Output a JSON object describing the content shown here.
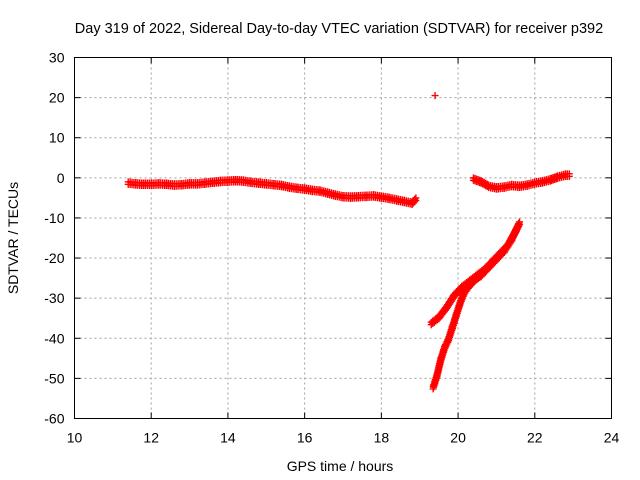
{
  "chart_data": {
    "type": "scatter",
    "title": "Day 319 of 2022, Sidereal Day-to-day VTEC variation (SDTVAR) for receiver p392",
    "xlabel": "GPS time / hours",
    "ylabel": "SDTVAR / TECUs",
    "xlim": [
      10,
      24
    ],
    "ylim": [
      -60,
      30
    ],
    "xticks": [
      "10",
      "12",
      "14",
      "16",
      "18",
      "20",
      "22",
      "24"
    ],
    "yticks": [
      "30",
      "20",
      "10",
      "0",
      "-10",
      "-20",
      "-30",
      "-40",
      "-50",
      "-60"
    ],
    "grid": true,
    "marker": "+",
    "color": "#ff0000",
    "series": [
      {
        "points": [
          [
            11.4,
            -1.0
          ],
          [
            11.6,
            -1.2
          ],
          [
            11.8,
            -1.3
          ],
          [
            12.0,
            -1.3
          ],
          [
            12.2,
            -1.2
          ],
          [
            12.4,
            -1.3
          ],
          [
            12.6,
            -1.5
          ],
          [
            12.8,
            -1.4
          ],
          [
            13.0,
            -1.2
          ],
          [
            13.2,
            -1.2
          ],
          [
            13.4,
            -1.0
          ],
          [
            13.6,
            -0.8
          ],
          [
            13.8,
            -0.6
          ],
          [
            14.0,
            -0.5
          ],
          [
            14.2,
            -0.4
          ],
          [
            14.4,
            -0.5
          ],
          [
            14.6,
            -0.8
          ],
          [
            14.8,
            -1.0
          ],
          [
            15.0,
            -1.2
          ],
          [
            15.2,
            -1.4
          ],
          [
            15.4,
            -1.6
          ],
          [
            15.6,
            -2.0
          ],
          [
            15.8,
            -2.3
          ],
          [
            16.0,
            -2.5
          ],
          [
            16.2,
            -2.8
          ],
          [
            16.4,
            -3.0
          ],
          [
            16.6,
            -3.5
          ],
          [
            16.8,
            -4.0
          ],
          [
            17.0,
            -4.4
          ],
          [
            17.2,
            -4.5
          ],
          [
            17.4,
            -4.4
          ],
          [
            17.6,
            -4.3
          ],
          [
            17.8,
            -4.2
          ],
          [
            18.0,
            -4.5
          ],
          [
            18.2,
            -4.8
          ],
          [
            18.4,
            -5.2
          ],
          [
            18.6,
            -5.6
          ],
          [
            18.8,
            -6.0
          ],
          [
            18.9,
            -5.0
          ]
        ]
      },
      {
        "points": [
          [
            19.4,
            20.5
          ]
        ]
      },
      {
        "points": [
          [
            20.4,
            0.0
          ],
          [
            20.6,
            -0.7
          ],
          [
            20.8,
            -1.8
          ],
          [
            21.0,
            -2.2
          ],
          [
            21.2,
            -2.0
          ],
          [
            21.4,
            -1.6
          ],
          [
            21.6,
            -1.8
          ],
          [
            21.8,
            -1.5
          ],
          [
            22.0,
            -1.0
          ],
          [
            22.2,
            -0.7
          ],
          [
            22.4,
            -0.2
          ],
          [
            22.6,
            0.5
          ],
          [
            22.8,
            1.0
          ],
          [
            22.9,
            1.0
          ]
        ]
      },
      {
        "points": [
          [
            19.3,
            -36.0
          ],
          [
            19.5,
            -34.5
          ],
          [
            19.7,
            -32.0
          ],
          [
            19.9,
            -29.0
          ],
          [
            20.1,
            -27.0
          ],
          [
            20.3,
            -25.5
          ],
          [
            20.5,
            -24.0
          ],
          [
            20.7,
            -22.5
          ],
          [
            20.9,
            -20.5
          ],
          [
            21.1,
            -18.5
          ],
          [
            21.3,
            -16.5
          ],
          [
            21.5,
            -13.0
          ],
          [
            21.6,
            -11.0
          ]
        ]
      },
      {
        "points": [
          [
            19.35,
            -52.0
          ],
          [
            19.45,
            -49.0
          ],
          [
            19.55,
            -45.0
          ],
          [
            19.65,
            -42.0
          ],
          [
            19.75,
            -40.0
          ],
          [
            19.85,
            -37.0
          ],
          [
            19.95,
            -34.0
          ],
          [
            20.05,
            -31.0
          ],
          [
            20.15,
            -28.5
          ],
          [
            20.3,
            -26.5
          ],
          [
            20.45,
            -25.0
          ],
          [
            20.6,
            -24.0
          ],
          [
            20.8,
            -22.0
          ],
          [
            21.0,
            -20.0
          ],
          [
            21.2,
            -18.0
          ],
          [
            21.4,
            -15.0
          ],
          [
            21.6,
            -11.0
          ]
        ]
      }
    ]
  }
}
